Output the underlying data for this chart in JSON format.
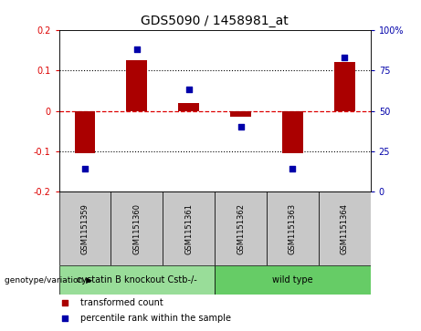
{
  "title": "GDS5090 / 1458981_at",
  "samples": [
    "GSM1151359",
    "GSM1151360",
    "GSM1151361",
    "GSM1151362",
    "GSM1151363",
    "GSM1151364"
  ],
  "bar_values": [
    -0.105,
    0.125,
    0.02,
    -0.015,
    -0.105,
    0.12
  ],
  "percentile_raw": [
    14,
    88,
    63,
    40,
    14,
    83
  ],
  "ylim": [
    -0.2,
    0.2
  ],
  "y2lim": [
    0,
    100
  ],
  "left_ticks": [
    -0.2,
    -0.1,
    0,
    0.1,
    0.2
  ],
  "right_ticks": [
    0,
    25,
    50,
    75,
    100
  ],
  "bar_color": "#AA0000",
  "dot_color": "#0000AA",
  "zero_line_color": "#DD0000",
  "dotted_line_color": "black",
  "groups": [
    {
      "label": "cystatin B knockout Cstb-/-",
      "start": 0,
      "end": 2,
      "color": "#99DD99"
    },
    {
      "label": "wild type",
      "start": 3,
      "end": 5,
      "color": "#66CC66"
    }
  ],
  "genotype_label": "genotype/variation",
  "legend_items": [
    {
      "label": "transformed count",
      "color": "#AA0000"
    },
    {
      "label": "percentile rank within the sample",
      "color": "#0000AA"
    }
  ],
  "title_fontsize": 10,
  "tick_fontsize": 7,
  "sample_fontsize": 6,
  "group_fontsize": 7,
  "legend_fontsize": 7,
  "right_tick_color": "#0000AA",
  "left_tick_color": "#DD0000",
  "sample_box_color": "#C8C8C8",
  "bar_width": 0.4
}
